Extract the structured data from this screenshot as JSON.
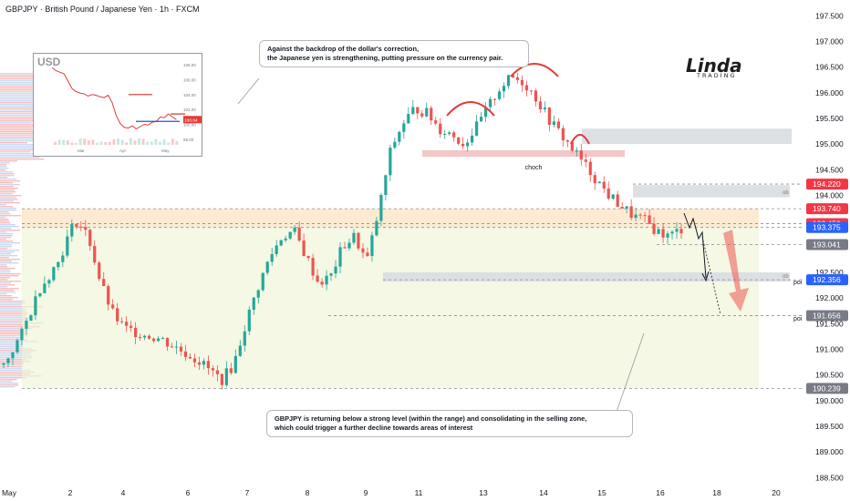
{
  "header": {
    "title": "GBPJPY · British Pound / Japanese Yen · 1h · FXCM"
  },
  "notes": {
    "top_line1": "Against the backdrop of the dollar's correction,",
    "top_line2": "the Japanese yen is strengthening, putting pressure on the currency pair.",
    "bottom_line1": "GBPJPY is returning below a strong level (within the range) and consolidating in the selling zone,",
    "bottom_line2": "which could trigger a further decline towards areas of interest"
  },
  "logo": {
    "text": "Linda",
    "sub": "TRADING"
  },
  "inset": {
    "label": "USD",
    "y_ticks": [
      "108.00",
      "106.00",
      "104.00",
      "102.00",
      "100.00",
      "98.00"
    ],
    "x_ticks": [
      "Mar",
      "Apr",
      "May"
    ],
    "price_tag": "100.64",
    "colors": {
      "line": "#e53935",
      "level_red": "#d32f2f",
      "level_blue": "#1e53e5",
      "tag": "#e53935"
    }
  },
  "colors": {
    "up": "#26a69a",
    "down": "#ef5350",
    "range_fill": "#eef5d6",
    "zone_fill": "#dcdfe3",
    "zone_fill_entry": "#fde9cf",
    "red_label": "#f23645",
    "blue_label": "#2962ff",
    "grey_label": "#787b86",
    "arrow": "#ef5350"
  },
  "annotations": {
    "choch": "choch",
    "poi1": "poi",
    "poi2": "poi",
    "ob1": "ob",
    "ob2": "ob"
  },
  "chart_data": {
    "type": "candlestick",
    "title": "GBPJPY · British Pound / Japanese Yen · 1h · FXCM",
    "ylim": [
      188.4,
      197.7
    ],
    "y_ticks": [
      197.5,
      197.0,
      196.5,
      196.0,
      195.5,
      195.0,
      194.5,
      194.0,
      193.5,
      193.0,
      192.5,
      192.0,
      191.5,
      191.0,
      190.5,
      190.0,
      189.5,
      189.0,
      188.5
    ],
    "y_tick_labels": [
      "197.500",
      "197.000",
      "196.500",
      "196.000",
      "195.500",
      "195.000",
      "194.500",
      "194.000",
      "193.500",
      "193.000",
      "192.500",
      "192.000",
      "191.500",
      "191.000",
      "190.500",
      "190.000",
      "189.500",
      "189.000",
      "188.500"
    ],
    "x_tick_labels": [
      "May",
      "2",
      "4",
      "6",
      "7",
      "8",
      "9",
      "11",
      "13",
      "14",
      "15",
      "16",
      "18",
      "20"
    ],
    "price_labels": [
      {
        "value": 194.22,
        "text": "194.220",
        "kind": "red"
      },
      {
        "value": 193.74,
        "text": "193.740",
        "kind": "red"
      },
      {
        "value": 193.45,
        "text": "193.450",
        "kind": "red"
      },
      {
        "value": 193.375,
        "text": "193.375",
        "kind": "blue"
      },
      {
        "value": 193.041,
        "text": "193.041",
        "kind": "grey"
      },
      {
        "value": 192.356,
        "text": "192.356",
        "kind": "blue"
      },
      {
        "value": 191.656,
        "text": "191.656",
        "kind": "grey"
      },
      {
        "value": 190.239,
        "text": "190.239",
        "kind": "grey"
      }
    ],
    "close_path": [
      [
        0,
        190.7
      ],
      [
        3,
        191.3
      ],
      [
        6,
        192.2
      ],
      [
        9,
        192.7
      ],
      [
        11,
        193.3
      ],
      [
        12,
        193.5
      ],
      [
        14,
        193.2
      ],
      [
        16,
        192.3
      ],
      [
        18,
        191.7
      ],
      [
        20,
        191.4
      ],
      [
        23,
        191.3
      ],
      [
        26,
        191.2
      ],
      [
        29,
        191.0
      ],
      [
        32,
        190.8
      ],
      [
        34,
        190.6
      ],
      [
        36,
        190.4
      ],
      [
        38,
        190.7
      ],
      [
        40,
        191.5
      ],
      [
        42,
        192.2
      ],
      [
        44,
        192.8
      ],
      [
        46,
        193.2
      ],
      [
        48,
        193.3
      ],
      [
        50,
        192.8
      ],
      [
        52,
        192.3
      ],
      [
        54,
        192.4
      ],
      [
        56,
        193.0
      ],
      [
        58,
        193.2
      ],
      [
        60,
        192.7
      ],
      [
        62,
        193.7
      ],
      [
        64,
        194.9
      ],
      [
        66,
        195.4
      ],
      [
        68,
        195.7
      ],
      [
        70,
        195.6
      ],
      [
        72,
        195.3
      ],
      [
        74,
        195.2
      ],
      [
        76,
        195.0
      ],
      [
        78,
        195.3
      ],
      [
        80,
        195.7
      ],
      [
        82,
        196.1
      ],
      [
        84,
        196.3
      ],
      [
        86,
        196.2
      ],
      [
        88,
        195.9
      ],
      [
        90,
        195.5
      ],
      [
        92,
        195.2
      ],
      [
        94,
        194.9
      ],
      [
        96,
        194.6
      ],
      [
        98,
        194.3
      ],
      [
        100,
        194.0
      ],
      [
        102,
        193.8
      ],
      [
        104,
        193.6
      ],
      [
        106,
        193.5
      ],
      [
        108,
        193.3
      ],
      [
        110,
        193.2
      ],
      [
        112,
        193.35
      ]
    ]
  }
}
